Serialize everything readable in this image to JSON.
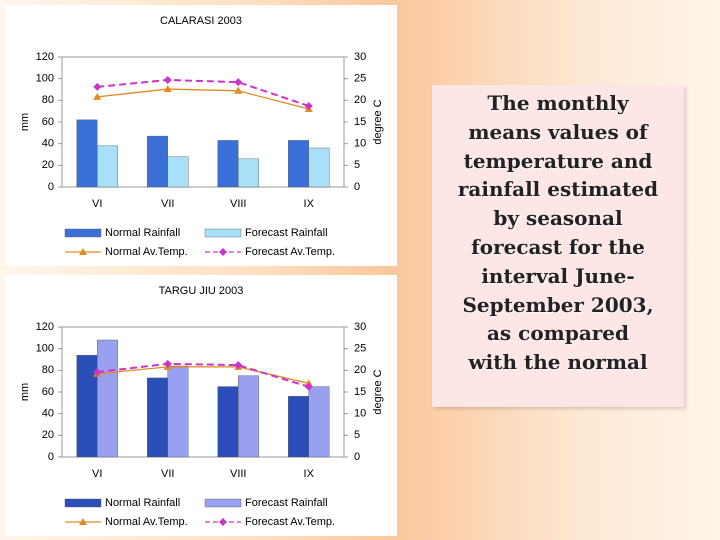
{
  "chart_data": [
    {
      "type": "bar",
      "title": "CALARASI 2003",
      "ylabel": "mm",
      "y2label": "degree C",
      "categories": [
        "VI",
        "VII",
        "VIII",
        "IX"
      ],
      "ylim": [
        0,
        120
      ],
      "yticks": [
        0,
        20,
        40,
        60,
        80,
        100,
        120
      ],
      "y2lim": [
        0,
        30
      ],
      "y2ticks": [
        0,
        5,
        10,
        15,
        20,
        25,
        30
      ],
      "series": [
        {
          "name": "Normal Rainfall",
          "color": "#3a6fd8",
          "values": [
            62,
            47,
            43,
            43
          ]
        },
        {
          "name": "Forecast Rainfall",
          "color": "#a8e0f8",
          "values": [
            38,
            28,
            26,
            36
          ]
        },
        {
          "name": "Normal Av.Temp.",
          "color": "#e08a20",
          "axis": "y2",
          "marker": "triangle",
          "values": [
            20.8,
            22.6,
            22.2,
            18
          ]
        },
        {
          "name": "Forecast Av.Temp.",
          "color": "#cc33cc",
          "axis": "y2",
          "marker": "diamond",
          "dashed": true,
          "values": [
            23.1,
            24.7,
            24.2,
            18.7
          ]
        }
      ]
    },
    {
      "type": "bar",
      "title": "TARGU JIU 2003",
      "ylabel": "mm",
      "y2label": "degree C",
      "categories": [
        "VI",
        "VII",
        "VIII",
        "IX"
      ],
      "ylim": [
        0,
        120
      ],
      "yticks": [
        0,
        20,
        40,
        60,
        80,
        100,
        120
      ],
      "y2lim": [
        0,
        30
      ],
      "y2ticks": [
        0,
        5,
        10,
        15,
        20,
        25,
        30
      ],
      "series": [
        {
          "name": "Normal Rainfall",
          "color": "#2a4fb8",
          "values": [
            94,
            73,
            65,
            56
          ]
        },
        {
          "name": "Forecast Rainfall",
          "color": "#9aa0f0",
          "values": [
            108,
            84,
            75,
            65
          ]
        },
        {
          "name": "Normal Av.Temp.",
          "color": "#e08a20",
          "axis": "y2",
          "marker": "triangle",
          "values": [
            19.2,
            20.8,
            20.8,
            17
          ]
        },
        {
          "name": "Forecast Av.Temp.",
          "color": "#cc33cc",
          "axis": "y2",
          "marker": "diamond",
          "dashed": true,
          "values": [
            19.6,
            21.5,
            21.2,
            16.2
          ]
        }
      ]
    }
  ],
  "caption": {
    "lines": [
      "The monthly",
      "means values of",
      "temperature and",
      "rainfall estimated",
      "by seasonal",
      "forecast for the",
      "interval June-",
      "September 2003,",
      "as compared",
      "with the normal"
    ]
  }
}
